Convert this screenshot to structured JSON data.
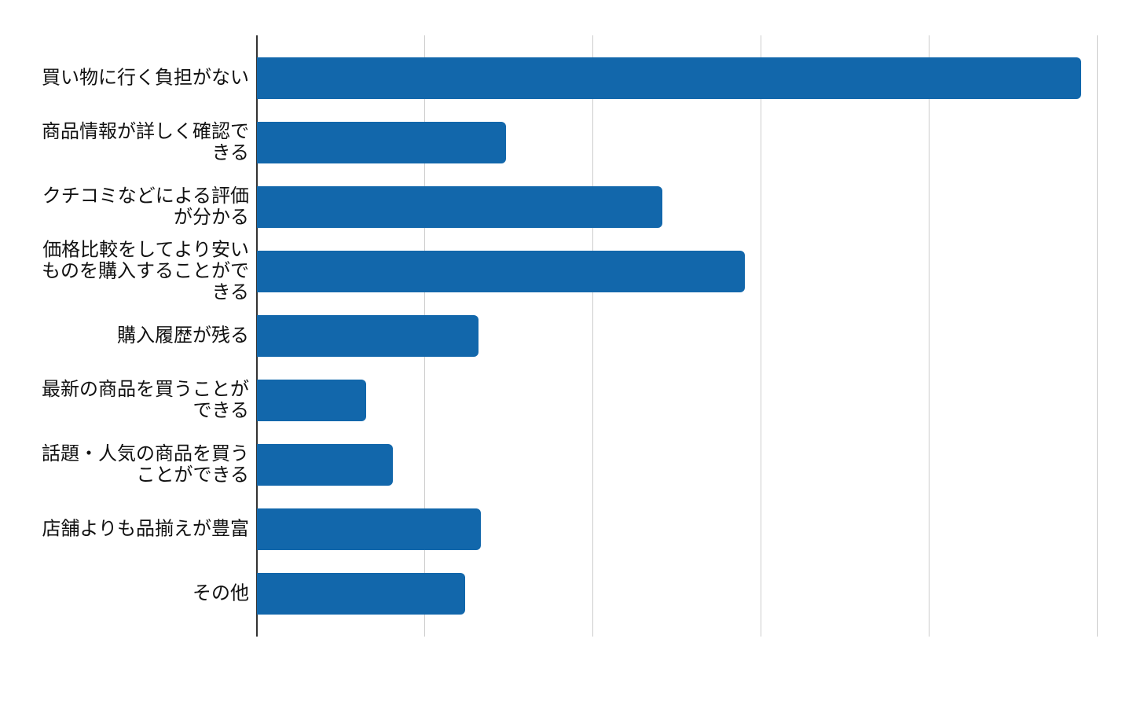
{
  "chart_data": {
    "type": "bar",
    "orientation": "horizontal",
    "title": "",
    "xlabel": "",
    "ylabel": "",
    "categories": [
      "買い物に行く負担がない",
      "商品情報が詳しく確認できる",
      "クチコミなどによる評価が分かる",
      "価格比較をしてより安いものを購入することができる",
      "購入履歴が残る",
      "最新の商品を買うことができる",
      "話題・人気の商品を買うことができる",
      "店舗よりも品揃えが豊富",
      "その他"
    ],
    "category_lines": [
      [
        "買い物に行く負担がない"
      ],
      [
        "商品情報が詳しく確認で",
        "きる"
      ],
      [
        "クチコミなどによる評価",
        "が分かる"
      ],
      [
        "価格比較をしてより安い",
        "ものを購入することがで",
        "きる"
      ],
      [
        "購入履歴が残る"
      ],
      [
        "最新の商品を買うことが",
        "できる"
      ],
      [
        "話題・人気の商品を買う",
        "ことができる"
      ],
      [
        "店舗よりも品揃えが豊富"
      ],
      [
        "その他"
      ]
    ],
    "values": [
      49,
      14.8,
      24.1,
      29,
      13.2,
      6.5,
      8.1,
      13.3,
      12.4
    ],
    "xlim": [
      0,
      50
    ],
    "x_gridline_step": 10,
    "x_tick_labels_visible": false,
    "grid": true,
    "legend": "none",
    "bar_color": "#1267ab",
    "axis_line_color": "#333333",
    "gridline_color": "#cccccc",
    "background_color": "#ffffff"
  }
}
